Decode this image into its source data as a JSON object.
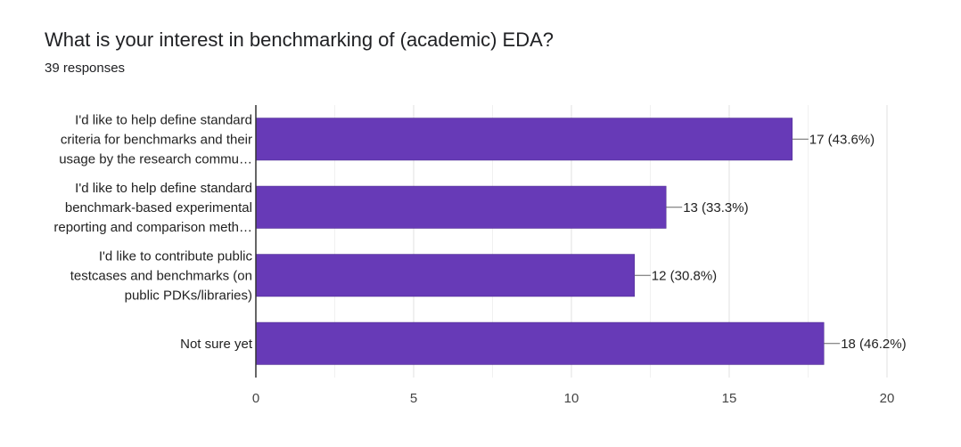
{
  "title": "What is your interest in benchmarking of (academic) EDA?",
  "subtitle": "39 responses",
  "chart_data": {
    "type": "bar",
    "orientation": "horizontal",
    "categories": [
      [
        "I'd like to help define standard",
        "criteria for benchmarks and their",
        "usage by the research commu…"
      ],
      [
        "I'd like to help define standard",
        "benchmark-based experimental",
        "reporting and comparison meth…"
      ],
      [
        "I'd like to contribute public",
        "testcases and benchmarks (on",
        "public PDKs/libraries)"
      ],
      [
        "Not sure yet"
      ]
    ],
    "values": [
      17,
      13,
      12,
      18
    ],
    "data_labels": [
      "17 (43.6%)",
      "13 (33.3%)",
      "12 (30.8%)",
      "18 (46.2%)"
    ],
    "xlim": [
      0,
      20
    ],
    "xticks": [
      0,
      5,
      10,
      15,
      20
    ],
    "grid": true,
    "bar_color": "#673ab7"
  }
}
